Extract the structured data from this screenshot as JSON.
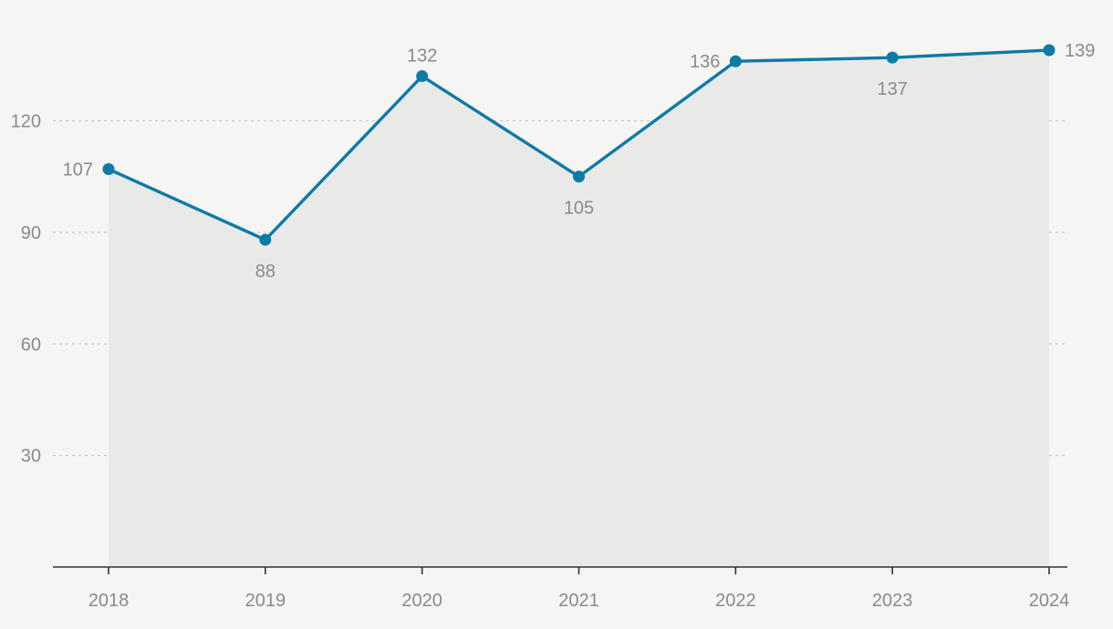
{
  "chart_data": {
    "type": "area",
    "title": "",
    "xlabel": "",
    "ylabel": "",
    "categories": [
      "2018",
      "2019",
      "2020",
      "2021",
      "2022",
      "2023",
      "2024"
    ],
    "values": [
      107,
      88,
      132,
      105,
      136,
      137,
      139
    ],
    "data_labels": [
      "107",
      "88",
      "132",
      "105",
      "136",
      "137",
      "139"
    ],
    "ylim": [
      0,
      139
    ],
    "yticks": [
      30,
      60,
      90,
      120
    ],
    "ytick_labels": [
      "30",
      "60",
      "90",
      "120"
    ],
    "grid": true,
    "legend": "none",
    "colors": {
      "line": "#0e7aa6",
      "fill": "#e9e9e7",
      "background": "#f5f5f3",
      "text": "#8a8a8a",
      "axis": "#333333",
      "grid": "#c9c9c9"
    }
  }
}
